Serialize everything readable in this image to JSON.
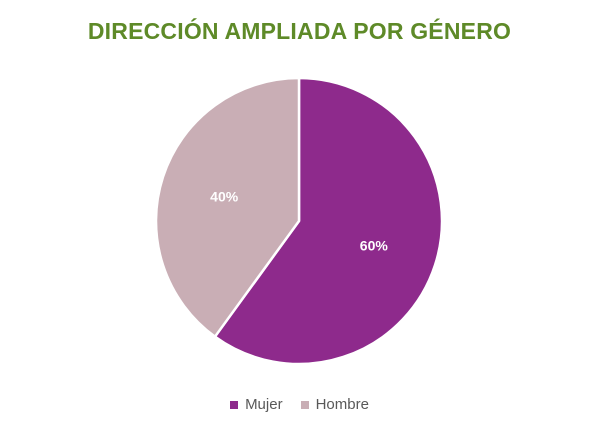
{
  "colors": {
    "title": "#5E8A28",
    "mujer": "#8E2A8C",
    "hombre": "#C9AEB5",
    "label_text": "#ffffff",
    "legend_text": "#595959"
  },
  "chart_data": {
    "type": "pie",
    "title": "DIRECCIÓN AMPLIADA POR GÉNERO",
    "categories": [
      "Mujer",
      "Hombre"
    ],
    "values": [
      60,
      40
    ],
    "data_labels": [
      "60%",
      "40%"
    ],
    "legend": {
      "placement": "bottom",
      "entries": [
        "Mujer",
        "Hombre"
      ]
    }
  }
}
